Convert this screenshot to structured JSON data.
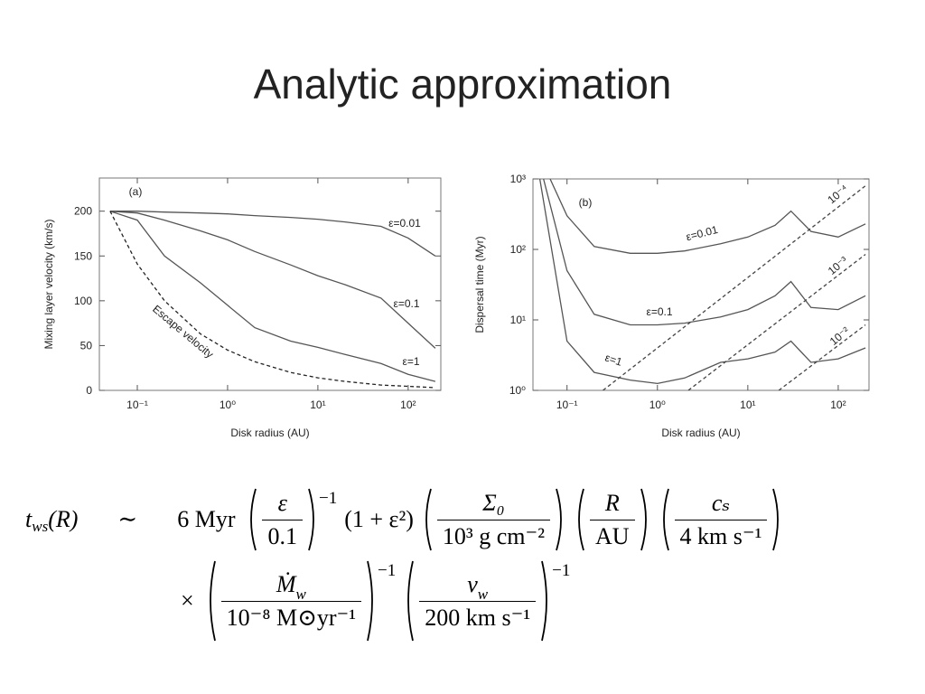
{
  "title": "Analytic approximation",
  "chart_data": [
    {
      "type": "line",
      "panel_label": "(a)",
      "x_label": "Disk radius (AU)",
      "y_label": "Mixing layer velocity (km/s)",
      "x_log": true,
      "y_log": false,
      "xlim": [
        0.038,
        230
      ],
      "ylim": [
        0,
        237
      ],
      "xticks": [
        {
          "value": 0.1,
          "label": "10⁻¹"
        },
        {
          "value": 1,
          "label": "10⁰"
        },
        {
          "value": 10,
          "label": "10¹"
        },
        {
          "value": 100,
          "label": "10²"
        }
      ],
      "yticks": [
        0,
        50,
        100,
        150,
        200
      ],
      "series": [
        {
          "name": "ε=0.01",
          "color": "#555555",
          "line_style": "solid",
          "x": [
            0.05,
            0.1,
            0.2,
            0.5,
            1,
            2,
            5,
            10,
            20,
            50,
            100,
            200
          ],
          "values": [
            200,
            200,
            199,
            198,
            197,
            195,
            193,
            191,
            188,
            183,
            170,
            150
          ]
        },
        {
          "name": "ε=0.1",
          "color": "#555555",
          "line_style": "solid",
          "x": [
            0.05,
            0.1,
            0.2,
            0.5,
            1,
            2,
            5,
            10,
            20,
            50,
            100,
            200
          ],
          "values": [
            200,
            198,
            190,
            178,
            168,
            155,
            140,
            128,
            118,
            103,
            75,
            47
          ]
        },
        {
          "name": "ε=1",
          "color": "#555555",
          "line_style": "solid",
          "x": [
            0.05,
            0.1,
            0.2,
            0.5,
            1,
            2,
            5,
            10,
            20,
            50,
            100,
            200
          ],
          "values": [
            200,
            190,
            150,
            120,
            95,
            70,
            55,
            48,
            40,
            30,
            18,
            10
          ]
        },
        {
          "name": "Escape velocity",
          "color": "#222222",
          "line_style": "dashed",
          "x": [
            0.05,
            0.1,
            0.2,
            0.5,
            1,
            2,
            5,
            10,
            20,
            50,
            100,
            200
          ],
          "values": [
            200,
            141,
            100,
            63,
            45,
            32,
            20,
            14,
            10,
            6,
            4.5,
            3
          ]
        }
      ]
    },
    {
      "type": "line",
      "panel_label": "(b)",
      "x_label": "Disk radius (AU)",
      "y_label": "Dispersal time (Myr)",
      "x_log": true,
      "y_log": true,
      "xlim": [
        0.042,
        219
      ],
      "ylim": [
        1,
        1000
      ],
      "xticks": [
        {
          "value": 0.1,
          "label": "10⁻¹"
        },
        {
          "value": 1,
          "label": "10⁰"
        },
        {
          "value": 10,
          "label": "10¹"
        },
        {
          "value": 100,
          "label": "10²"
        }
      ],
      "yticks": [
        {
          "value": 1,
          "label": "10⁰"
        },
        {
          "value": 10,
          "label": "10¹"
        },
        {
          "value": 100,
          "label": "10²"
        },
        {
          "value": 1000,
          "label": "10³"
        }
      ],
      "series": [
        {
          "name": "ε=0.01",
          "color": "#555555",
          "line_style": "solid",
          "x": [
            0.065,
            0.1,
            0.2,
            0.5,
            1,
            2,
            5,
            10,
            20,
            30,
            50,
            100,
            200
          ],
          "values": [
            1000,
            300,
            110,
            88,
            88,
            95,
            120,
            150,
            220,
            350,
            180,
            150,
            230
          ]
        },
        {
          "name": "ε=0.1",
          "color": "#555555",
          "line_style": "solid",
          "x": [
            0.055,
            0.1,
            0.2,
            0.5,
            1,
            2,
            5,
            10,
            20,
            30,
            50,
            100,
            200
          ],
          "values": [
            1000,
            50,
            12,
            8.5,
            8.5,
            9,
            11,
            14,
            22,
            35,
            15,
            14,
            22
          ]
        },
        {
          "name": "ε=1",
          "color": "#555555",
          "line_style": "solid",
          "x": [
            0.05,
            0.1,
            0.2,
            0.5,
            1,
            2,
            5,
            10,
            20,
            30,
            50,
            100,
            200
          ],
          "values": [
            1000,
            5,
            1.8,
            1.4,
            1.25,
            1.5,
            2.5,
            2.8,
            3.5,
            5,
            2.5,
            2.8,
            4
          ]
        },
        {
          "name": "10⁻⁴",
          "color": "#444444",
          "line_style": "dashed",
          "x": [
            0.25,
            200
          ],
          "values": [
            1,
            800
          ]
        },
        {
          "name": "10⁻³",
          "color": "#444444",
          "line_style": "dashed",
          "x": [
            2.2,
            200
          ],
          "values": [
            1,
            85
          ]
        },
        {
          "name": "10⁻²",
          "color": "#444444",
          "line_style": "dashed",
          "x": [
            22,
            200
          ],
          "values": [
            1,
            8.5
          ]
        }
      ]
    }
  ],
  "equation": {
    "lhs": {
      "symbol": "t",
      "subscript": "ws",
      "argument": "(R)"
    },
    "relation": "∼",
    "coefficient": "6 Myr",
    "line1": [
      {
        "numerator": "ε",
        "denominator": "0.1",
        "exponent": "−1"
      },
      {
        "text": "(1 + ε²)"
      },
      {
        "numerator": "Σ₀",
        "denominator": "10³ g cm⁻²"
      },
      {
        "numerator": "R",
        "denominator": "AU"
      },
      {
        "numerator": "cₛ",
        "denominator": "4 km s⁻¹"
      }
    ],
    "operator": "×",
    "line2": [
      {
        "numerator": "Ṁ",
        "numerator_subscript": "w",
        "denominator": "10⁻⁸ M⊙yr⁻¹",
        "exponent": "−1"
      },
      {
        "numerator": "v",
        "numerator_subscript": "w",
        "denominator": "200 km s⁻¹",
        "exponent": "−1"
      }
    ]
  }
}
